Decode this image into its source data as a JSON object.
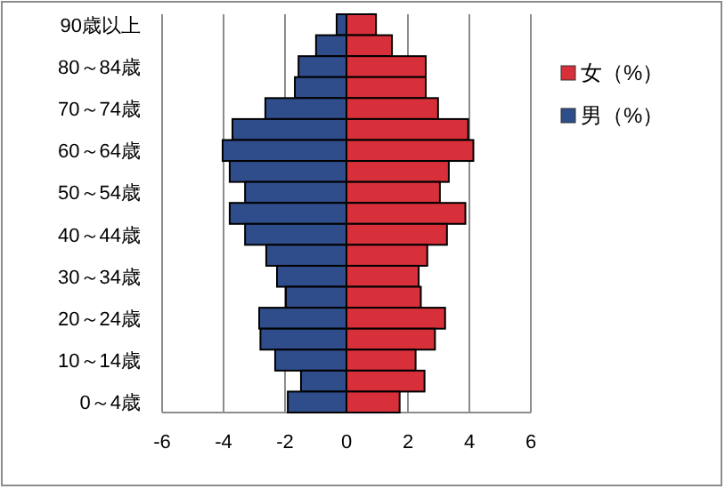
{
  "chart_data": {
    "type": "bar",
    "orientation": "horizontal",
    "categories": [
      "90歳以上",
      null,
      "80～84歳",
      null,
      "70～74歳",
      null,
      "60～64歳",
      null,
      "50～54歳",
      null,
      "40～44歳",
      null,
      "30～34歳",
      null,
      "20～24歳",
      null,
      "10～14歳",
      null,
      "0～4歳"
    ],
    "series": [
      {
        "name": "女（%）",
        "color": "#d8303a",
        "values": [
          0.96,
          1.48,
          2.58,
          2.58,
          2.98,
          3.96,
          4.13,
          3.33,
          3.04,
          3.87,
          3.27,
          2.63,
          2.35,
          2.42,
          3.21,
          2.88,
          2.25,
          2.54,
          1.73
        ]
      },
      {
        "name": "男（%）",
        "color": "#2f4d8a",
        "values": [
          -0.32,
          -0.99,
          -1.56,
          -1.68,
          -2.64,
          -3.71,
          -4.03,
          -3.8,
          -3.3,
          -3.8,
          -3.3,
          -2.61,
          -2.26,
          -1.97,
          -2.84,
          -2.8,
          -2.32,
          -1.48,
          -1.91
        ]
      }
    ],
    "xlim": [
      -6,
      6
    ],
    "xticks": [
      -6,
      -4,
      -2,
      0,
      2,
      4,
      6
    ],
    "grid": "x",
    "legend": "right",
    "stacked": true
  }
}
